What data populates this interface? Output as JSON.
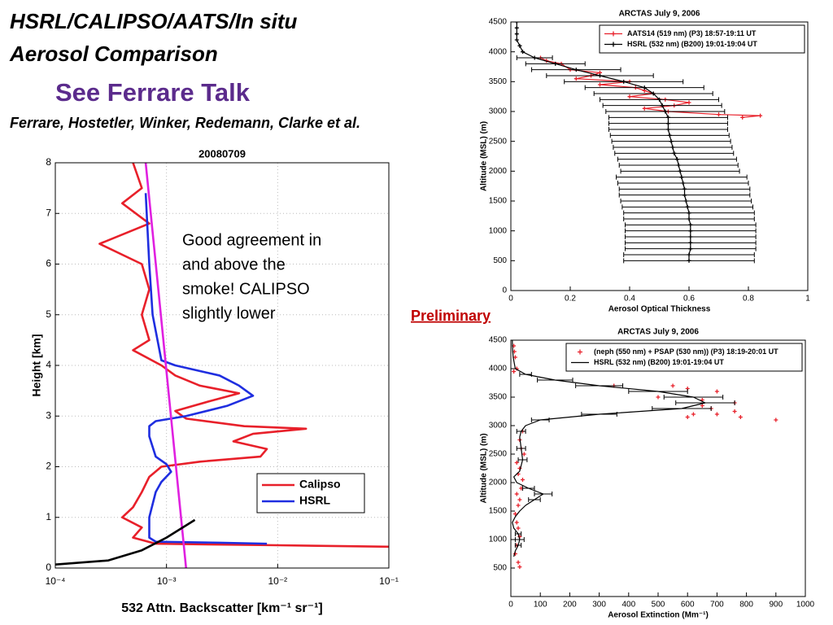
{
  "slide": {
    "title": [
      "HSRL/CALIPSO/AATS/In situ",
      "Aerosol Comparison"
    ],
    "subtitle": "See Ferrare Talk",
    "authors": "Ferrare, Hostetler, Winker, Redemann, Clarke et al.",
    "note": "Preliminary"
  },
  "chart_data": [
    {
      "type": "line",
      "title": "20080709",
      "x_label": "532 Attn. Backscatter [km⁻¹ sr⁻¹]",
      "y_label": "Height [km]",
      "x_scale": "log",
      "grid": true,
      "legend": "lower right",
      "annotation": [
        "Good agreement in",
        "and above the",
        "smoke!  CALIPSO",
        "slightly lower"
      ],
      "xlim": [
        0.0001,
        0.1
      ],
      "xticks": [
        {
          "value": 0.0001,
          "label": "10⁻⁴"
        },
        {
          "value": 0.001,
          "label": "10⁻³"
        },
        {
          "value": 0.01,
          "label": "10⁻²"
        },
        {
          "value": 0.1,
          "label": "10⁻¹"
        }
      ],
      "ylim": [
        0,
        8
      ],
      "yticks": [
        0,
        1,
        2,
        3,
        4,
        5,
        6,
        7,
        8
      ],
      "series": [
        {
          "name": "Calipso",
          "color": "#e8202a",
          "mode": "line",
          "x": [
            0.0005,
            0.0006,
            0.0004,
            0.0007,
            0.00025,
            0.0006,
            0.0007,
            0.0006,
            0.0007,
            0.0005,
            0.0009,
            0.0012,
            0.002,
            0.0045,
            0.0025,
            0.0012,
            0.0015,
            0.005,
            0.018,
            0.006,
            0.004,
            0.008,
            0.007,
            0.002,
            0.0009,
            0.0007,
            0.0006,
            0.0005,
            0.0004,
            0.0006,
            0.0005,
            0.0008,
            0.01,
            0.1
          ],
          "values": [
            8,
            7.5,
            7.2,
            6.8,
            6.4,
            6.0,
            5.5,
            5.0,
            4.5,
            4.3,
            4.0,
            3.8,
            3.6,
            3.45,
            3.3,
            3.1,
            2.95,
            2.8,
            2.75,
            2.65,
            2.5,
            2.35,
            2.2,
            2.1,
            2.0,
            1.8,
            1.5,
            1.2,
            1.0,
            0.8,
            0.6,
            0.48,
            0.45,
            0.42
          ]
        },
        {
          "name": "HSRL",
          "color": "#1f2ee0",
          "mode": "line",
          "x": [
            0.00065,
            0.0007,
            0.00075,
            0.0009,
            0.0012,
            0.003,
            0.0045,
            0.006,
            0.0035,
            0.0015,
            0.0008,
            0.0007,
            0.0007,
            0.0008,
            0.001,
            0.0011,
            0.0009,
            0.0008,
            0.0007,
            0.0007,
            0.0008,
            0.003,
            0.008
          ],
          "values": [
            7.4,
            6,
            5,
            4.1,
            4.0,
            3.8,
            3.6,
            3.4,
            3.2,
            3.0,
            2.9,
            2.8,
            2.6,
            2.2,
            2.05,
            1.9,
            1.7,
            1.5,
            1.0,
            0.6,
            0.52,
            0.5,
            0.48
          ]
        },
        {
          "color": "#e020e0",
          "mode": "line",
          "x": [
            0.00065,
            0.0015
          ],
          "values": [
            8,
            0
          ]
        },
        {
          "color": "#000000",
          "mode": "line",
          "x": [
            0.0001,
            0.0003,
            0.0006,
            0.001,
            0.0018
          ],
          "values": [
            0.07,
            0.15,
            0.35,
            0.6,
            0.95
          ]
        }
      ]
    },
    {
      "type": "line",
      "title": "ARCTAS  July 9, 2006",
      "x_label": "Aerosol Optical Thickness",
      "y_label": "Altitude (MSL) (m)",
      "legend": "upper right",
      "xlim": [
        0,
        1
      ],
      "xticks": [
        0,
        0.2,
        0.4,
        0.6,
        0.8,
        1
      ],
      "ylim": [
        0,
        4500
      ],
      "yticks": [
        0,
        500,
        1000,
        1500,
        2000,
        2500,
        3000,
        3500,
        4000,
        4500
      ],
      "series": [
        {
          "name": "AATS14 (519 nm) (P3) 18:57-19:11 UT",
          "color": "#e8202a",
          "mode": "line+markers",
          "x": [
            0.1,
            0.12,
            0.17,
            0.2,
            0.3,
            0.27,
            0.22,
            0.4,
            0.3,
            0.42,
            0.45,
            0.48,
            0.4,
            0.52,
            0.6,
            0.55,
            0.45,
            0.53,
            0.7,
            0.84,
            0.78
          ],
          "values": [
            3900,
            3850,
            3800,
            3700,
            3650,
            3600,
            3550,
            3500,
            3450,
            3400,
            3350,
            3300,
            3250,
            3200,
            3150,
            3100,
            3050,
            3000,
            2950,
            2930,
            2900
          ]
        },
        {
          "name": "HSRL (532 nm) (B200) 19:01-19:04 UT",
          "color": "#000000",
          "mode": "line+markers",
          "x": [
            0.02,
            0.02,
            0.02,
            0.02,
            0.03,
            0.04,
            0.08,
            0.15,
            0.22,
            0.3,
            0.38,
            0.45,
            0.48,
            0.5,
            0.51,
            0.52,
            0.53,
            0.53,
            0.53,
            0.535,
            0.54,
            0.545,
            0.55,
            0.56,
            0.565,
            0.57,
            0.575,
            0.58,
            0.585,
            0.585,
            0.59,
            0.595,
            0.6,
            0.6,
            0.605,
            0.605,
            0.605,
            0.605,
            0.605,
            0.6,
            0.6
          ],
          "values": [
            4500,
            4400,
            4300,
            4200,
            4100,
            4000,
            3900,
            3800,
            3700,
            3600,
            3500,
            3400,
            3300,
            3200,
            3100,
            3000,
            2900,
            2800,
            2700,
            2600,
            2500,
            2400,
            2300,
            2200,
            2100,
            2000,
            1900,
            1800,
            1700,
            1600,
            1500,
            1400,
            1300,
            1200,
            1100,
            1000,
            900,
            800,
            700,
            600,
            500
          ],
          "xerr": [
            null,
            null,
            null,
            null,
            null,
            null,
            0.06,
            0.1,
            0.15,
            0.18,
            0.2,
            0.2,
            0.2,
            0.2,
            0.2,
            0.2,
            0.2,
            0.2,
            0.2,
            0.2,
            0.2,
            0.2,
            0.2,
            0.2,
            0.2,
            0.2,
            0.22,
            0.22,
            0.22,
            0.22,
            0.22,
            0.22,
            0.22,
            0.22,
            0.22,
            0.22,
            0.22,
            0.22,
            0.22,
            0.22,
            0.22
          ]
        }
      ]
    },
    {
      "type": "line",
      "title": "ARCTAS  July 9, 2006",
      "x_label": "Aerosol Extinction (Mm⁻¹)",
      "y_label": "Altitude (MSL) (m)",
      "legend": "upper right",
      "xlim": [
        0,
        1000
      ],
      "xticks": [
        0,
        100,
        200,
        300,
        400,
        500,
        600,
        700,
        800,
        900,
        1000
      ],
      "ylim": [
        0,
        4500
      ],
      "yticks": [
        500,
        1000,
        1500,
        2000,
        2500,
        3000,
        3500,
        4000,
        4500
      ],
      "series": [
        {
          "name": "(neph (550 nm) + PSAP (530 nm)) (P3) 18:19-20:01 UT",
          "color": "#e8202a",
          "mode": "markers",
          "x": [
            10,
            12,
            15,
            20,
            10,
            350,
            550,
            600,
            700,
            500,
            650,
            760,
            650,
            680,
            700,
            620,
            600,
            900,
            780,
            760,
            40,
            30,
            35,
            45,
            20,
            30,
            25,
            40,
            35,
            20,
            30,
            25,
            15,
            20,
            25,
            30,
            20,
            15,
            25,
            30
          ],
          "values": [
            4400,
            4300,
            4200,
            4000,
            3950,
            3700,
            3700,
            3650,
            3600,
            3500,
            3450,
            3400,
            3350,
            3300,
            3200,
            3200,
            3150,
            3100,
            3150,
            3250,
            2900,
            2750,
            2600,
            2500,
            2350,
            2250,
            2150,
            2050,
            1900,
            1800,
            1700,
            1600,
            1450,
            1300,
            1200,
            1050,
            900,
            750,
            600,
            520
          ]
        },
        {
          "name": "HSRL (532 nm) (B200) 19:01-19:04 UT",
          "color": "#000000",
          "mode": "line",
          "x": [
            5,
            5,
            8,
            15,
            50,
            150,
            300,
            500,
            620,
            660,
            580,
            300,
            100,
            50,
            35,
            30,
            35,
            40,
            30,
            10,
            20,
            60,
            110,
            80,
            50,
            30,
            15,
            5,
            10,
            25,
            30,
            25,
            15,
            10
          ],
          "values": [
            4500,
            4400,
            4200,
            4000,
            3900,
            3800,
            3700,
            3600,
            3500,
            3400,
            3300,
            3200,
            3100,
            3000,
            2900,
            2800,
            2600,
            2400,
            2200,
            2100,
            2000,
            1900,
            1800,
            1700,
            1600,
            1500,
            1400,
            1300,
            1200,
            1100,
            1000,
            900,
            800,
            700
          ],
          "xerr": [
            null,
            null,
            null,
            null,
            20,
            60,
            80,
            100,
            100,
            100,
            100,
            60,
            30,
            null,
            15,
            null,
            15,
            15,
            null,
            null,
            null,
            20,
            30,
            20,
            null,
            null,
            null,
            null,
            null,
            10,
            15,
            10,
            null,
            null
          ]
        }
      ]
    }
  ]
}
